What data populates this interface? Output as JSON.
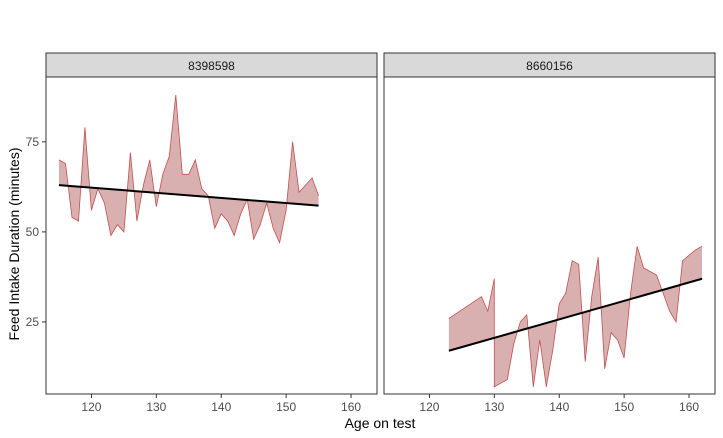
{
  "chart_data": {
    "type": "area",
    "xlabel": "Age on test",
    "ylabel": "Feed Intake Duration (minutes)",
    "xlim": [
      113,
      164
    ],
    "ylim": [
      5,
      93
    ],
    "x_ticks": [
      120,
      130,
      140,
      150,
      160
    ],
    "y_ticks": [
      25,
      50,
      75
    ],
    "grid": false,
    "colors": {
      "ribbon_fill": "#d9b0b0",
      "ribbon_stroke": "#c44e4e",
      "trend": "#000000",
      "strip_bg": "#d9d9d9"
    },
    "panels": [
      {
        "strip": "8398598",
        "observed": [
          [
            115,
            70
          ],
          [
            116,
            69
          ],
          [
            117,
            54
          ],
          [
            118,
            53
          ],
          [
            119,
            79
          ],
          [
            120,
            56
          ],
          [
            121,
            62
          ],
          [
            122,
            58
          ],
          [
            123,
            49
          ],
          [
            124,
            52
          ],
          [
            125,
            50
          ],
          [
            126,
            72
          ],
          [
            127,
            53
          ],
          [
            128,
            63
          ],
          [
            129,
            70
          ],
          [
            130,
            57
          ],
          [
            131,
            66
          ],
          [
            132,
            71
          ],
          [
            133,
            88
          ],
          [
            134,
            66
          ],
          [
            135,
            66
          ],
          [
            136,
            70
          ],
          [
            137,
            62
          ],
          [
            138,
            60
          ],
          [
            139,
            51
          ],
          [
            140,
            55
          ],
          [
            141,
            53
          ],
          [
            142,
            49
          ],
          [
            143,
            55
          ],
          [
            144,
            59
          ],
          [
            145,
            48
          ],
          [
            146,
            52
          ],
          [
            147,
            58
          ],
          [
            148,
            51
          ],
          [
            149,
            47
          ],
          [
            150,
            56
          ],
          [
            151,
            75
          ],
          [
            152,
            61
          ],
          [
            153,
            63
          ],
          [
            154,
            65
          ],
          [
            155,
            60
          ]
        ],
        "trend": [
          [
            115,
            63
          ],
          [
            155,
            57.3
          ]
        ]
      },
      {
        "strip": "8660156",
        "observed": [
          [
            123,
            26
          ],
          [
            128,
            32
          ],
          [
            129,
            28
          ],
          [
            130,
            37
          ],
          [
            130,
            7
          ],
          [
            131,
            8
          ],
          [
            132,
            9
          ],
          [
            133,
            19
          ],
          [
            134,
            25
          ],
          [
            135,
            27
          ],
          [
            136,
            7
          ],
          [
            137,
            20
          ],
          [
            138,
            7
          ],
          [
            139,
            17
          ],
          [
            140,
            30
          ],
          [
            141,
            33
          ],
          [
            142,
            42
          ],
          [
            143,
            41
          ],
          [
            144,
            14
          ],
          [
            145,
            32
          ],
          [
            146,
            43
          ],
          [
            147,
            12
          ],
          [
            148,
            22
          ],
          [
            149,
            20
          ],
          [
            150,
            15
          ],
          [
            151,
            33
          ],
          [
            152,
            46
          ],
          [
            153,
            40
          ],
          [
            154,
            39
          ],
          [
            155,
            38
          ],
          [
            156,
            33
          ],
          [
            157,
            28
          ],
          [
            158,
            25
          ],
          [
            159,
            42
          ],
          [
            161,
            45
          ],
          [
            162,
            46
          ]
        ],
        "trend": [
          [
            123,
            17
          ],
          [
            162,
            37
          ]
        ]
      }
    ]
  }
}
